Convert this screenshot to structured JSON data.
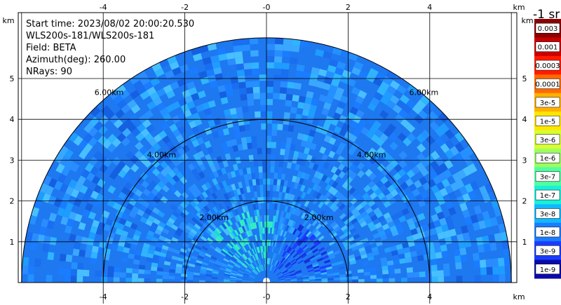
{
  "info": {
    "start_time": "Start time: 2023/08/02 20:00:20.530",
    "instrument": "WLS200s-181/WLS200s-181",
    "field": "Field: BETA",
    "azimuth": "Azimuth(deg): 260.00",
    "nrays": "NRays: 90"
  },
  "chart_data": {
    "type": "heatmap",
    "projection": "polar-sector",
    "title": "",
    "x_unit": "km",
    "y_unit": "km",
    "xlim": [
      -6.1,
      6.1
    ],
    "ylim": [
      0,
      5.8
    ],
    "x_ticks": [
      -4,
      -2,
      0,
      2,
      4
    ],
    "x_tick_labels": [
      "-4",
      "-2",
      "-0",
      "2",
      "4"
    ],
    "y_ticks": [
      1,
      2,
      3,
      4,
      5
    ],
    "y_tick_labels": [
      "1",
      "2",
      "3",
      "4",
      "5"
    ],
    "range_rings_km": [
      2,
      4,
      6
    ],
    "range_ring_labels": [
      "2.00km",
      "4.00km",
      "6.00km"
    ],
    "max_range_km": 6.0,
    "grid": true,
    "colorbar": {
      "unit_label": "-1 sr",
      "labels": [
        "0.003",
        "0.001",
        "0.0003",
        "0.0001",
        "3e-5",
        "1e-5",
        "3e-6",
        "1e-6",
        "3e-7",
        "1e-7",
        "3e-8",
        "1e-8",
        "3e-9",
        "1e-9"
      ],
      "colors": [
        "#8b0000",
        "#c80000",
        "#ff1a00",
        "#ff6a00",
        "#ffb000",
        "#ffe600",
        "#d8ff30",
        "#9cff60",
        "#50ffa0",
        "#18f0d8",
        "#10b8ff",
        "#1a7cff",
        "#1a3cff",
        "#0a0aa8"
      ]
    }
  }
}
